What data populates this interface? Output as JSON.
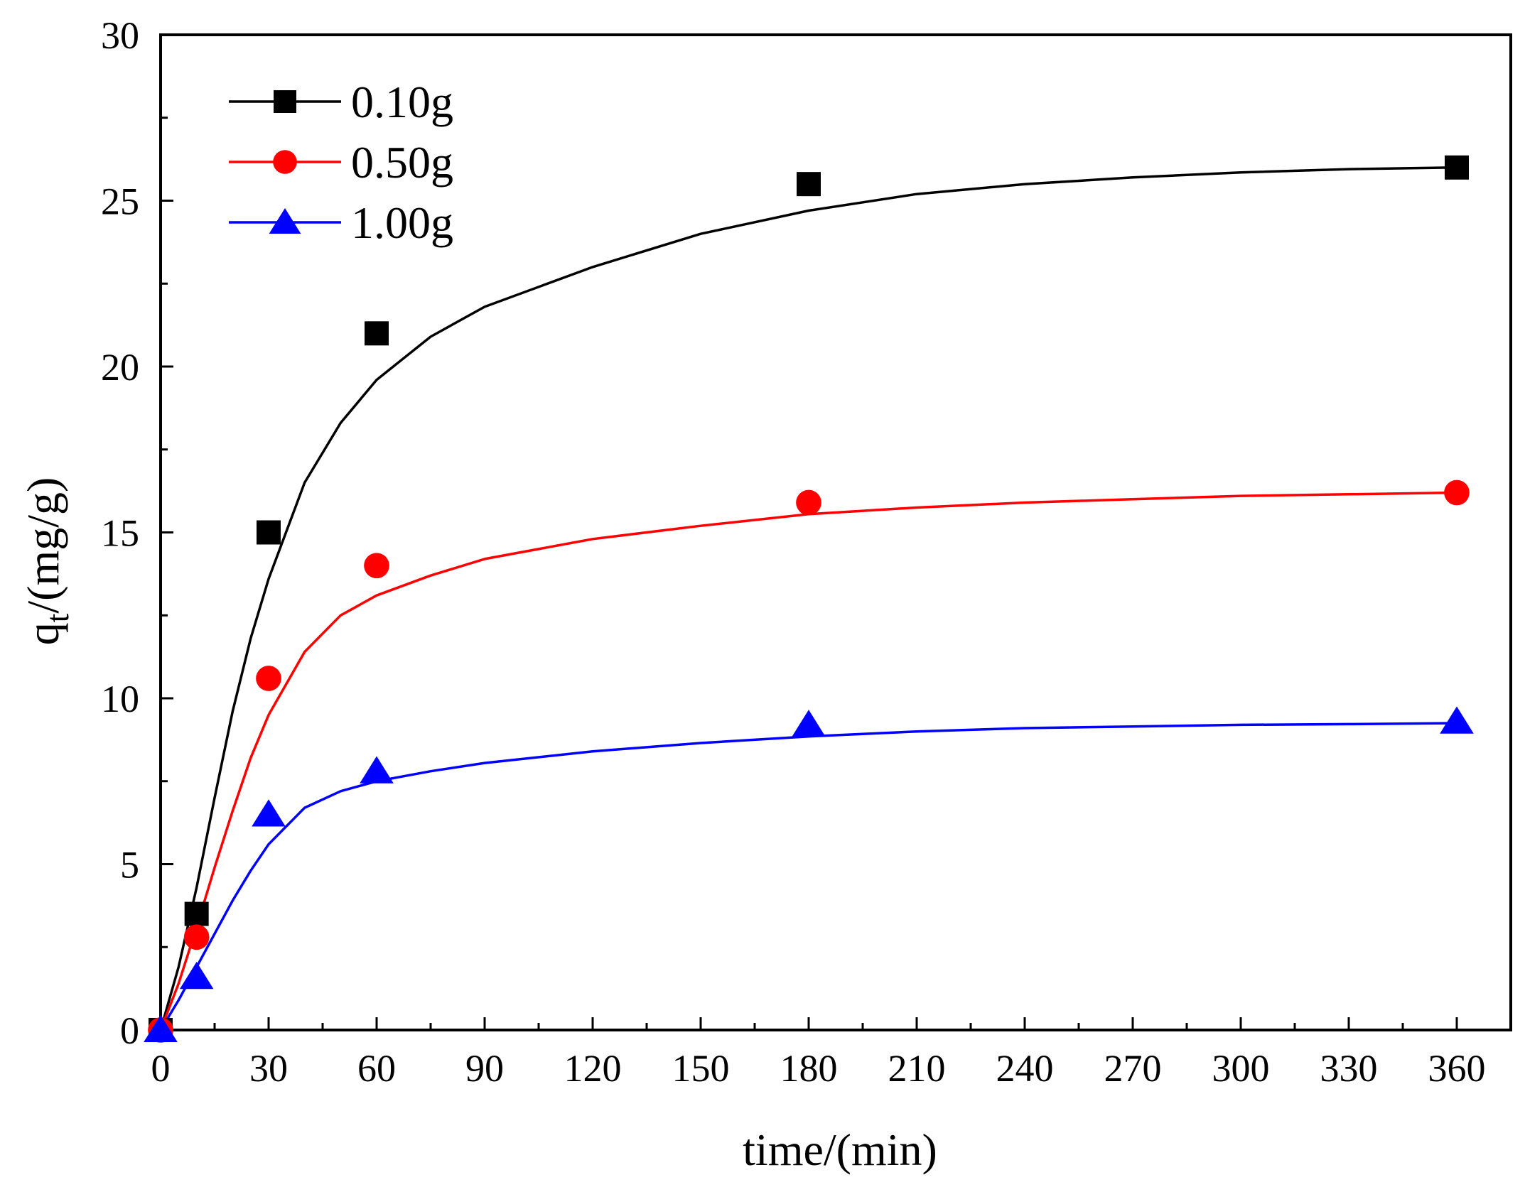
{
  "chart_data": {
    "type": "scatter",
    "title": "",
    "xlabel": "time/(min)",
    "ylabel_main": "q",
    "ylabel_sub": "t",
    "ylabel_rest": "/(mg/g)",
    "xlim": [
      0,
      375
    ],
    "ylim": [
      0,
      30
    ],
    "xticks": [
      0,
      30,
      60,
      90,
      120,
      150,
      180,
      210,
      240,
      270,
      300,
      330,
      360
    ],
    "yticks": [
      0,
      5,
      10,
      15,
      20,
      25,
      30
    ],
    "grid": false,
    "legend_position": "top-left",
    "series": [
      {
        "name": "0.10g",
        "color": "#000000",
        "marker": "square",
        "points": [
          [
            0,
            0
          ],
          [
            10,
            3.5
          ],
          [
            30,
            15.0
          ],
          [
            60,
            21.0
          ],
          [
            180,
            25.5
          ],
          [
            360,
            26.0
          ]
        ],
        "fit": [
          [
            0,
            0
          ],
          [
            5,
            1.9
          ],
          [
            10,
            4.3
          ],
          [
            15,
            7.0
          ],
          [
            20,
            9.6
          ],
          [
            25,
            11.8
          ],
          [
            30,
            13.6
          ],
          [
            40,
            16.5
          ],
          [
            50,
            18.3
          ],
          [
            60,
            19.6
          ],
          [
            75,
            20.9
          ],
          [
            90,
            21.8
          ],
          [
            120,
            23.0
          ],
          [
            150,
            24.0
          ],
          [
            180,
            24.7
          ],
          [
            210,
            25.2
          ],
          [
            240,
            25.5
          ],
          [
            270,
            25.7
          ],
          [
            300,
            25.85
          ],
          [
            330,
            25.95
          ],
          [
            360,
            26.0
          ]
        ]
      },
      {
        "name": "0.50g",
        "color": "#ff0000",
        "marker": "circle",
        "points": [
          [
            0,
            0
          ],
          [
            10,
            2.8
          ],
          [
            30,
            10.6
          ],
          [
            60,
            14.0
          ],
          [
            180,
            15.9
          ],
          [
            360,
            16.2
          ]
        ],
        "fit": [
          [
            0,
            0
          ],
          [
            5,
            1.4
          ],
          [
            10,
            3.1
          ],
          [
            15,
            4.9
          ],
          [
            20,
            6.6
          ],
          [
            25,
            8.2
          ],
          [
            30,
            9.5
          ],
          [
            40,
            11.4
          ],
          [
            50,
            12.5
          ],
          [
            60,
            13.1
          ],
          [
            75,
            13.7
          ],
          [
            90,
            14.2
          ],
          [
            120,
            14.8
          ],
          [
            150,
            15.2
          ],
          [
            180,
            15.55
          ],
          [
            210,
            15.75
          ],
          [
            240,
            15.9
          ],
          [
            270,
            16.0
          ],
          [
            300,
            16.1
          ],
          [
            330,
            16.15
          ],
          [
            360,
            16.2
          ]
        ]
      },
      {
        "name": "1.00g",
        "color": "#0000ff",
        "marker": "triangle",
        "points": [
          [
            0,
            0
          ],
          [
            10,
            1.6
          ],
          [
            30,
            6.5
          ],
          [
            60,
            7.8
          ],
          [
            180,
            9.2
          ],
          [
            360,
            9.3
          ]
        ],
        "fit": [
          [
            0,
            0
          ],
          [
            5,
            0.9
          ],
          [
            10,
            1.9
          ],
          [
            15,
            2.9
          ],
          [
            20,
            3.9
          ],
          [
            25,
            4.8
          ],
          [
            30,
            5.6
          ],
          [
            40,
            6.7
          ],
          [
            50,
            7.2
          ],
          [
            60,
            7.5
          ],
          [
            75,
            7.8
          ],
          [
            90,
            8.05
          ],
          [
            120,
            8.4
          ],
          [
            150,
            8.65
          ],
          [
            180,
            8.85
          ],
          [
            210,
            9.0
          ],
          [
            240,
            9.1
          ],
          [
            270,
            9.15
          ],
          [
            300,
            9.2
          ],
          [
            330,
            9.22
          ],
          [
            360,
            9.25
          ]
        ]
      }
    ]
  }
}
